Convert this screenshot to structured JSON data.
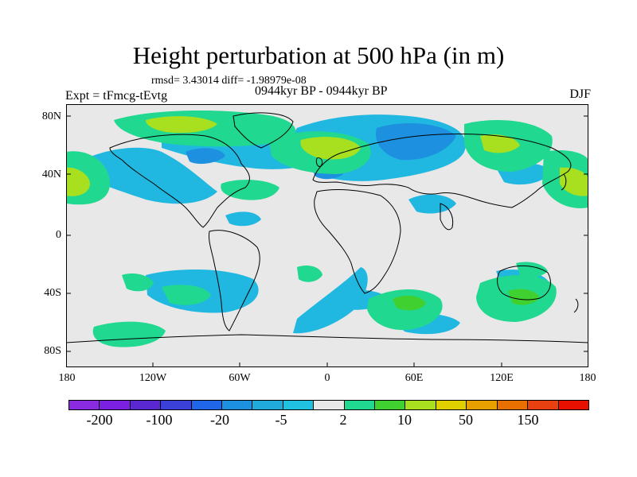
{
  "figure": {
    "title": "Height perturbation at 500 hPa (in m)",
    "stats": "rmsd= 3.43014 diff= -1.98979e-08",
    "experiment": "Expt = tFmcg-tEvtg",
    "period": "0944kyr BP - 0944kyr BP",
    "season": "DJF"
  },
  "map": {
    "projection": "cylindrical-equidistant",
    "background_color": "#e8e8e8",
    "lat_ticks": [
      "80N",
      "40N",
      "0",
      "40S",
      "80S"
    ],
    "lon_ticks": [
      "180",
      "120W",
      "60W",
      "0",
      "60E",
      "120E",
      "180"
    ]
  },
  "colorbar": {
    "colors": [
      "#8a2be2",
      "#7b1fe0",
      "#5a28d0",
      "#3a40d8",
      "#1f66e8",
      "#1e90e0",
      "#20aadc",
      "#20c0e0",
      "#e8e8e8",
      "#20d890",
      "#40d030",
      "#a8e020",
      "#e0d000",
      "#e8a000",
      "#e87000",
      "#e84010",
      "#e81000"
    ],
    "labels": [
      "-200",
      "-100",
      "-20",
      "-5",
      "2",
      "10",
      "50",
      "150"
    ]
  }
}
